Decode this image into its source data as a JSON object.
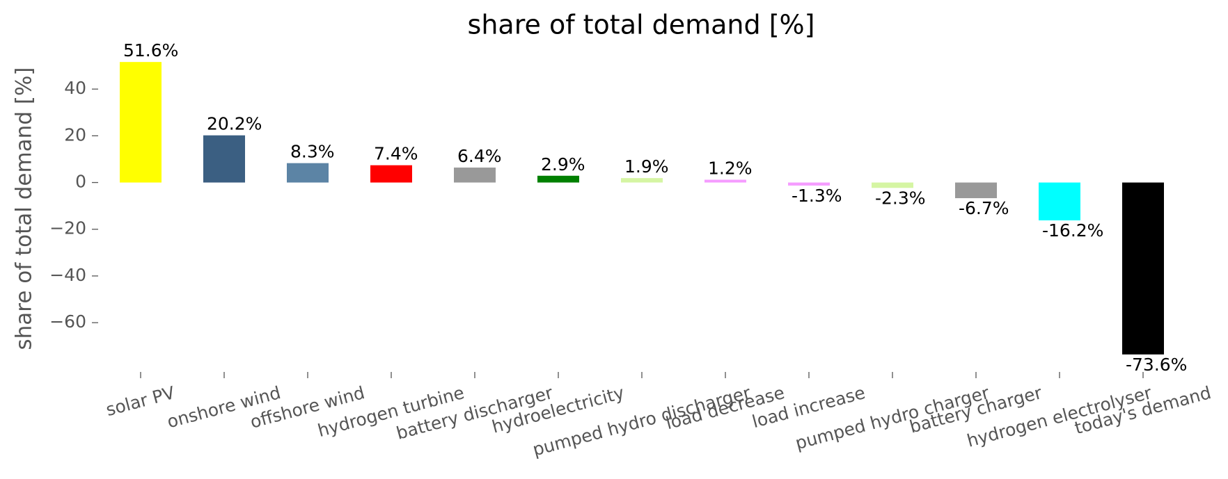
{
  "chart_data": {
    "type": "bar",
    "title": "share of total demand [%]",
    "y_label": "share of total demand [%]",
    "categories": [
      "solar PV",
      "onshore wind",
      "offshore wind",
      "hydrogen turbine",
      "battery discharger",
      "hydroelectricity",
      "pumped hydro discharger",
      "load decrease",
      "load increase",
      "pumped hydro charger",
      "battery charger",
      "hydrogen electrolyser",
      "today's demand"
    ],
    "values": [
      51.6,
      20.2,
      8.3,
      7.4,
      6.4,
      2.9,
      1.9,
      1.2,
      -1.3,
      -2.3,
      -6.7,
      -16.2,
      -73.6
    ],
    "value_labels": [
      "51.6%",
      "20.2%",
      "8.3%",
      "7.4%",
      "6.4%",
      "2.9%",
      "1.9%",
      "1.2%",
      "-1.3%",
      "-2.3%",
      "-6.7%",
      "-16.2%",
      "-73.6%"
    ],
    "colors": [
      "#ffff00",
      "#3b5f82",
      "#5c84a5",
      "#ff0000",
      "#999999",
      "#008000",
      "#d5f5a3",
      "#f59cff",
      "#f59cff",
      "#d5f5a3",
      "#999999",
      "#00ffff",
      "#000000"
    ],
    "ylim": [
      -79.9,
      57.9
    ],
    "yticks": [
      {
        "value": -60,
        "label": "−60"
      },
      {
        "value": -40,
        "label": "−40"
      },
      {
        "value": -20,
        "label": "−20"
      },
      0,
      20,
      40
    ]
  }
}
